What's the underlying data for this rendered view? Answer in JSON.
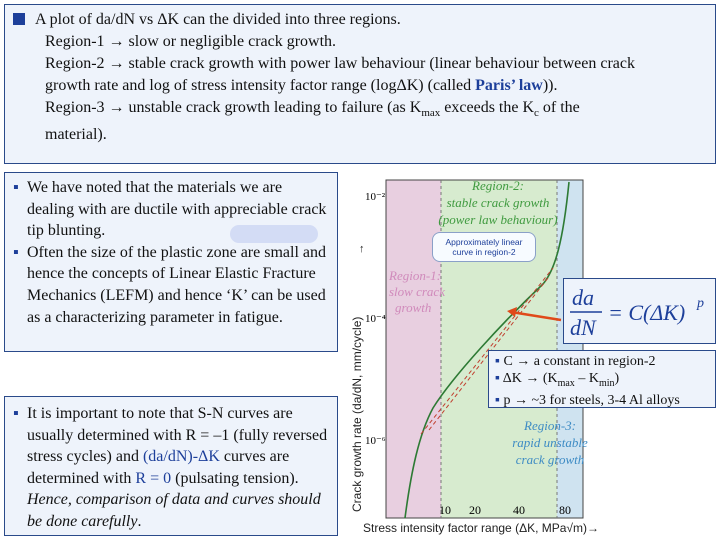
{
  "top": {
    "line1": "A plot of da/dN vs ΔK can the divided into three regions.",
    "line2": "Region-1 → slow or negligible crack growth.",
    "line3a": "Region-2 → stable crack growth with power law behaviour (linear behaviour between crack",
    "line3b_pre": "growth rate and log of stress intensity factor range (logΔK) (called ",
    "paris": "Paris’ law",
    "line3b_post": ")).",
    "line4a_pre": "Region-3 → unstable crack growth leading to failure (as K",
    "line4a_sub": "max",
    "line4a_mid": " exceeds the K",
    "line4a_sub2": "c",
    "line4a_post": " of the",
    "line4b": "material)."
  },
  "left1": {
    "b1": "We have noted that the materials we are dealing with are ductile with appreciable crack tip blunting.",
    "b2": "Often the size of the plastic zone are small and hence the concepts of Linear Elastic Fracture Mechanics (LEFM) and hence ‘K’ can be used as a characterizing parameter in fatigue."
  },
  "left2": {
    "pre": "It is important to note that S-N curves are usually determined with R = –1 (fully reversed stress cycles) and ",
    "mid_blue": "(da/dN)-ΔK",
    "mid": " curves are determined with ",
    "r0": "R = 0",
    "post": " (pulsating tension). ",
    "italic": "Hence, comparison of data and curves should be done carefully",
    "end": "."
  },
  "chart": {
    "region1": "Region-1:",
    "region1b": "slow crack",
    "region1c": "growth",
    "region2": "Region-2:",
    "region2b": "stable crack growth",
    "region2c": "(power law behaviour)",
    "region3": "Region-3:",
    "region3b": "rapid unstable",
    "region3c": "crack growth",
    "approx1": "Approximately linear",
    "approx2": "curve in region-2",
    "ylabel": "Crack growth rate (da/dN, mm/cycle)",
    "xlabel": "Stress intensity factor range (ΔK, MPa√m)→",
    "xticks": [
      "10",
      "20",
      "40",
      "80"
    ],
    "ytick_top": "10⁻²",
    "ytick_mid": "10⁻⁴",
    "ytick_low": "10⁻⁶"
  },
  "notes": {
    "n1": "C → a constant in region-2",
    "n2_pre": "ΔK → (K",
    "n2_sub1": "max",
    "n2_mid": " – K",
    "n2_sub2": "min",
    "n2_post": ")",
    "n3": "p → ~3 for steels, 3-4 Al alloys"
  },
  "colors": {
    "accent": "#1d3f9a",
    "region1": "#e8cfe0",
    "region2": "#d7ebcf",
    "region3": "#cfe3f0",
    "curve": "#2d7a34",
    "arrow": "#e04a1a"
  }
}
